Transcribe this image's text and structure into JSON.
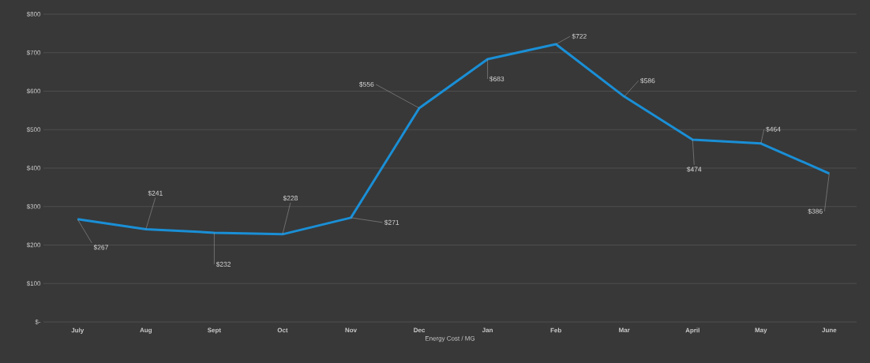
{
  "chart_data": {
    "type": "line",
    "xlabel": "Energy Cost / MG",
    "categories": [
      "July",
      "Aug",
      "Sept",
      "Oct",
      "Nov",
      "Dec",
      "Jan",
      "Feb",
      "Mar",
      "April",
      "May",
      "June"
    ],
    "values": [
      267,
      241,
      232,
      228,
      271,
      556,
      683,
      722,
      586,
      474,
      464,
      386
    ],
    "value_labels": [
      "$267",
      "$241",
      "$232",
      "$228",
      "$271",
      "$556",
      "$683",
      "$722",
      "$586",
      "$474",
      "$464",
      "$386"
    ],
    "color": "#1a8fd6",
    "ylim": [
      0,
      800
    ],
    "yticks": [
      {
        "value": 0,
        "label": "$-"
      },
      {
        "value": 100,
        "label": "$100"
      },
      {
        "value": 200,
        "label": "$200"
      },
      {
        "value": 300,
        "label": "$300"
      },
      {
        "value": 400,
        "label": "$400"
      },
      {
        "value": 500,
        "label": "$500"
      },
      {
        "value": 600,
        "label": "$600"
      },
      {
        "value": 700,
        "label": "$700"
      },
      {
        "value": 800,
        "label": "$800"
      }
    ],
    "grid": "y",
    "marker": "none",
    "line_style": "solid"
  }
}
